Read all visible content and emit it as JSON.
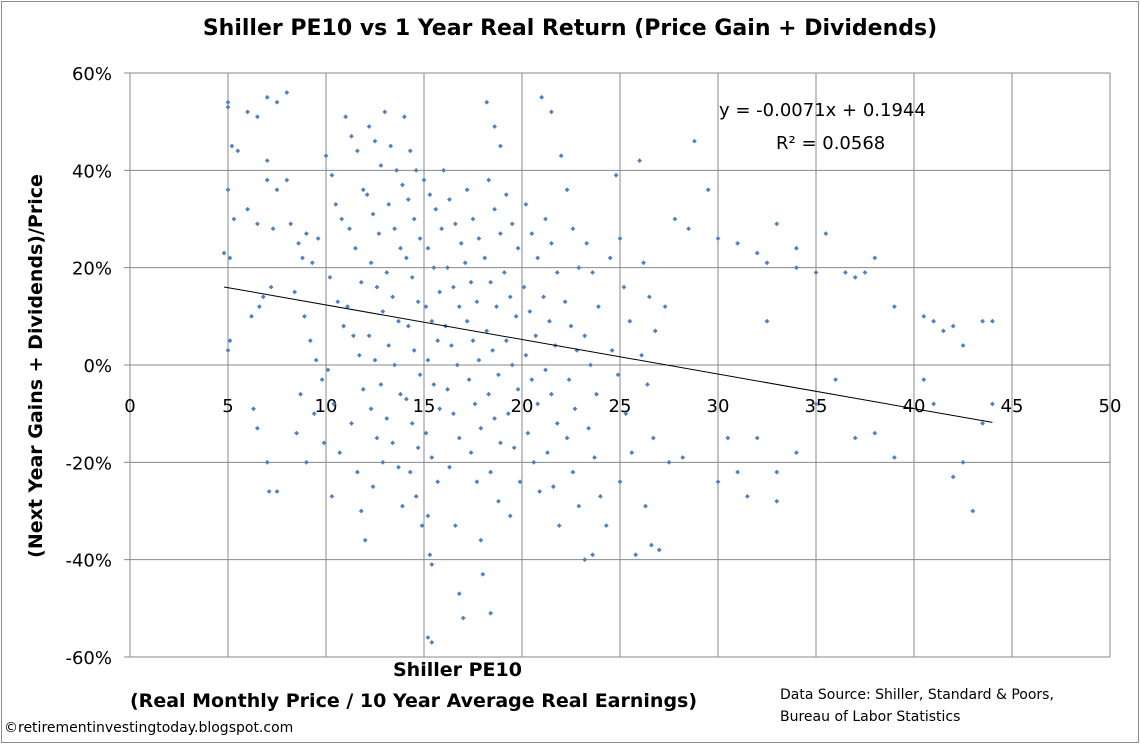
{
  "chart_data": {
    "type": "scatter",
    "title": "Shiller PE10 vs 1 Year Real Return (Price Gain +  Dividends)",
    "xlabel": "Shiller PE10",
    "xlabel_sub": "(Real Monthly Price / 10 Year Average Real Earnings)",
    "ylabel": "(Next Year Gains + Dividends)/Price",
    "xlim": [
      0,
      50
    ],
    "ylim": [
      -60,
      60
    ],
    "x_ticks": [
      "0",
      "5",
      "10",
      "15",
      "20",
      "25",
      "30",
      "35",
      "40",
      "45",
      "50"
    ],
    "y_ticks": [
      "60%",
      "40%",
      "20%",
      "0%",
      "-20%",
      "-40%",
      "-60%"
    ],
    "grid": true,
    "marker_color": "#4F81BD",
    "trendline": {
      "slope": -0.0071,
      "intercept": 0.1944,
      "x_range": [
        4.8,
        44
      ],
      "equation": "y = -0.0071x + 0.1944",
      "r_squared": "R² = 0.0568"
    },
    "points": [
      [
        5,
        54
      ],
      [
        5,
        53
      ],
      [
        5.2,
        45
      ],
      [
        5.5,
        44
      ],
      [
        5,
        36
      ],
      [
        5.3,
        30
      ],
      [
        4.8,
        23
      ],
      [
        5.1,
        22
      ],
      [
        5.1,
        5
      ],
      [
        5,
        3
      ],
      [
        6,
        52
      ],
      [
        6.5,
        51
      ],
      [
        7,
        55
      ],
      [
        7.5,
        54
      ],
      [
        8,
        56
      ],
      [
        7,
        42
      ],
      [
        7,
        38
      ],
      [
        8,
        38
      ],
      [
        7.5,
        36
      ],
      [
        6,
        32
      ],
      [
        6.5,
        29
      ],
      [
        7.3,
        28
      ],
      [
        6.8,
        14
      ],
      [
        7.2,
        16
      ],
      [
        6.2,
        10
      ],
      [
        6.6,
        12
      ],
      [
        7,
        -20
      ],
      [
        7.1,
        -26
      ],
      [
        7.5,
        -26
      ],
      [
        6.5,
        -13
      ],
      [
        6.3,
        -9
      ],
      [
        8.5,
        -14
      ],
      [
        9,
        -20
      ],
      [
        8.2,
        29
      ],
      [
        8.6,
        25
      ],
      [
        8.8,
        22
      ],
      [
        9,
        27
      ],
      [
        9.3,
        21
      ],
      [
        9.6,
        26
      ],
      [
        8.4,
        15
      ],
      [
        8.9,
        10
      ],
      [
        9.2,
        5
      ],
      [
        9.5,
        1
      ],
      [
        9.8,
        -3
      ],
      [
        8.7,
        -6
      ],
      [
        9.4,
        -10
      ],
      [
        9.9,
        -16
      ],
      [
        10,
        43
      ],
      [
        10.3,
        39
      ],
      [
        10.5,
        33
      ],
      [
        10.8,
        30
      ],
      [
        10.2,
        18
      ],
      [
        10.6,
        13
      ],
      [
        10.9,
        8
      ],
      [
        10.1,
        -1
      ],
      [
        10.4,
        -8
      ],
      [
        10.7,
        -18
      ],
      [
        10.3,
        -27
      ],
      [
        11,
        51
      ],
      [
        11.3,
        47
      ],
      [
        11.6,
        44
      ],
      [
        11.9,
        36
      ],
      [
        11.2,
        28
      ],
      [
        11.5,
        24
      ],
      [
        11.8,
        17
      ],
      [
        11.1,
        12
      ],
      [
        11.4,
        6
      ],
      [
        11.7,
        2
      ],
      [
        11.9,
        -5
      ],
      [
        11.3,
        -12
      ],
      [
        11.6,
        -22
      ],
      [
        11.8,
        -30
      ],
      [
        12,
        -36
      ],
      [
        12.2,
        49
      ],
      [
        12.5,
        46
      ],
      [
        12.8,
        41
      ],
      [
        12.1,
        35
      ],
      [
        12.4,
        31
      ],
      [
        12.7,
        27
      ],
      [
        12.3,
        21
      ],
      [
        12.6,
        16
      ],
      [
        12.9,
        11
      ],
      [
        12.2,
        6
      ],
      [
        12.5,
        1
      ],
      [
        12.8,
        -4
      ],
      [
        12.3,
        -9
      ],
      [
        12.6,
        -15
      ],
      [
        12.9,
        -20
      ],
      [
        12.4,
        -25
      ],
      [
        13,
        52
      ],
      [
        13.3,
        45
      ],
      [
        13.6,
        40
      ],
      [
        13.9,
        37
      ],
      [
        13.2,
        33
      ],
      [
        13.5,
        28
      ],
      [
        13.8,
        24
      ],
      [
        13.1,
        19
      ],
      [
        13.4,
        14
      ],
      [
        13.7,
        9
      ],
      [
        13.2,
        4
      ],
      [
        13.5,
        0
      ],
      [
        13.8,
        -6
      ],
      [
        13.1,
        -11
      ],
      [
        13.4,
        -16
      ],
      [
        13.7,
        -21
      ],
      [
        13.9,
        -29
      ],
      [
        14,
        51
      ],
      [
        14.3,
        44
      ],
      [
        14.6,
        40
      ],
      [
        14.2,
        34
      ],
      [
        14.5,
        30
      ],
      [
        14.8,
        26
      ],
      [
        14.1,
        22
      ],
      [
        14.4,
        18
      ],
      [
        14.7,
        13
      ],
      [
        14.2,
        8
      ],
      [
        14.5,
        3
      ],
      [
        14.8,
        -2
      ],
      [
        14.1,
        -7
      ],
      [
        14.4,
        -12
      ],
      [
        14.7,
        -17
      ],
      [
        14.3,
        -22
      ],
      [
        14.6,
        -27
      ],
      [
        14.9,
        -33
      ],
      [
        15,
        38
      ],
      [
        15.3,
        35
      ],
      [
        15.6,
        32
      ],
      [
        15.9,
        28
      ],
      [
        15.2,
        24
      ],
      [
        15.5,
        20
      ],
      [
        15.8,
        15
      ],
      [
        15.1,
        12
      ],
      [
        15.4,
        9
      ],
      [
        15.7,
        5
      ],
      [
        15.2,
        1
      ],
      [
        15.5,
        -4
      ],
      [
        15.8,
        -9
      ],
      [
        15.1,
        -14
      ],
      [
        15.4,
        -19
      ],
      [
        15.7,
        -24
      ],
      [
        15.2,
        -31
      ],
      [
        15.3,
        -39
      ],
      [
        15.4,
        -41
      ],
      [
        15.2,
        -56
      ],
      [
        15.4,
        -57
      ],
      [
        16,
        40
      ],
      [
        16.3,
        34
      ],
      [
        16.6,
        29
      ],
      [
        16.9,
        25
      ],
      [
        16.2,
        20
      ],
      [
        16.5,
        16
      ],
      [
        16.8,
        12
      ],
      [
        16.1,
        8
      ],
      [
        16.4,
        4
      ],
      [
        16.7,
        0
      ],
      [
        16.2,
        -5
      ],
      [
        16.5,
        -10
      ],
      [
        16.8,
        -15
      ],
      [
        16.3,
        -21
      ],
      [
        16.6,
        -33
      ],
      [
        16.8,
        -47
      ],
      [
        17,
        -52
      ],
      [
        17.2,
        36
      ],
      [
        17.5,
        30
      ],
      [
        17.8,
        26
      ],
      [
        17.1,
        21
      ],
      [
        17.4,
        17
      ],
      [
        17.7,
        13
      ],
      [
        17.2,
        9
      ],
      [
        17.5,
        5
      ],
      [
        17.8,
        1
      ],
      [
        17.3,
        -3
      ],
      [
        17.6,
        -8
      ],
      [
        17.9,
        -13
      ],
      [
        17.4,
        -18
      ],
      [
        17.7,
        -24
      ],
      [
        17.9,
        -36
      ],
      [
        18,
        -43
      ],
      [
        18.4,
        -51
      ],
      [
        18.2,
        54
      ],
      [
        18.6,
        49
      ],
      [
        18.9,
        45
      ],
      [
        18.3,
        38
      ],
      [
        18.6,
        32
      ],
      [
        18.9,
        27
      ],
      [
        18.1,
        22
      ],
      [
        18.4,
        17
      ],
      [
        18.7,
        12
      ],
      [
        18.2,
        7
      ],
      [
        18.5,
        3
      ],
      [
        18.8,
        -2
      ],
      [
        18.3,
        -6
      ],
      [
        18.6,
        -11
      ],
      [
        18.9,
        -16
      ],
      [
        18.4,
        -22
      ],
      [
        18.8,
        -28
      ],
      [
        19.2,
        35
      ],
      [
        19.5,
        29
      ],
      [
        19.8,
        24
      ],
      [
        19.1,
        19
      ],
      [
        19.4,
        14
      ],
      [
        19.7,
        10
      ],
      [
        19.2,
        5
      ],
      [
        19.5,
        0
      ],
      [
        19.8,
        -5
      ],
      [
        19.3,
        -10
      ],
      [
        19.6,
        -17
      ],
      [
        19.9,
        -24
      ],
      [
        19.4,
        -31
      ],
      [
        20.2,
        33
      ],
      [
        20.5,
        27
      ],
      [
        20.8,
        22
      ],
      [
        20.1,
        16
      ],
      [
        20.4,
        11
      ],
      [
        20.7,
        6
      ],
      [
        20.2,
        2
      ],
      [
        20.5,
        -3
      ],
      [
        20.8,
        -8
      ],
      [
        20.3,
        -14
      ],
      [
        20.6,
        -20
      ],
      [
        20.9,
        -26
      ],
      [
        21,
        55
      ],
      [
        21.5,
        52
      ],
      [
        21.2,
        30
      ],
      [
        21.5,
        25
      ],
      [
        21.8,
        19
      ],
      [
        21.1,
        14
      ],
      [
        21.4,
        9
      ],
      [
        21.7,
        4
      ],
      [
        21.2,
        -1
      ],
      [
        21.5,
        -6
      ],
      [
        21.8,
        -12
      ],
      [
        21.3,
        -18
      ],
      [
        21.6,
        -25
      ],
      [
        21.9,
        -33
      ],
      [
        22,
        43
      ],
      [
        22.3,
        36
      ],
      [
        22.6,
        28
      ],
      [
        22.9,
        20
      ],
      [
        22.2,
        13
      ],
      [
        22.5,
        8
      ],
      [
        22.8,
        3
      ],
      [
        22.4,
        -3
      ],
      [
        22.7,
        -9
      ],
      [
        22.3,
        -15
      ],
      [
        22.6,
        -22
      ],
      [
        22.9,
        -29
      ],
      [
        23.2,
        -40
      ],
      [
        23.6,
        -39
      ],
      [
        23.3,
        25
      ],
      [
        23.6,
        19
      ],
      [
        23.9,
        12
      ],
      [
        23.2,
        6
      ],
      [
        23.5,
        0
      ],
      [
        23.8,
        -6
      ],
      [
        23.4,
        -13
      ],
      [
        23.7,
        -19
      ],
      [
        24,
        -27
      ],
      [
        24.3,
        -33
      ],
      [
        24.5,
        22
      ],
      [
        24.8,
        39
      ],
      [
        25,
        26
      ],
      [
        25.2,
        16
      ],
      [
        25.5,
        9
      ],
      [
        24.6,
        3
      ],
      [
        24.9,
        -2
      ],
      [
        25.3,
        -10
      ],
      [
        25.6,
        -18
      ],
      [
        25,
        -24
      ],
      [
        25.8,
        -39
      ],
      [
        26,
        42
      ],
      [
        26.2,
        21
      ],
      [
        26.5,
        14
      ],
      [
        26.8,
        7
      ],
      [
        26.1,
        2
      ],
      [
        26.4,
        -4
      ],
      [
        26.7,
        -15
      ],
      [
        26.3,
        -29
      ],
      [
        26.6,
        -37
      ],
      [
        27,
        -38
      ],
      [
        27.3,
        12
      ],
      [
        27.5,
        -20
      ],
      [
        27.8,
        30
      ],
      [
        28.2,
        -19
      ],
      [
        28.5,
        28
      ],
      [
        28.8,
        46
      ],
      [
        29.5,
        36
      ],
      [
        30,
        26
      ],
      [
        31,
        25
      ],
      [
        32,
        23
      ],
      [
        32.5,
        21
      ],
      [
        33,
        29
      ],
      [
        34,
        24
      ],
      [
        34,
        20
      ],
      [
        35.5,
        27
      ],
      [
        35,
        19
      ],
      [
        36.5,
        19
      ],
      [
        37,
        18
      ],
      [
        37.5,
        19
      ],
      [
        38,
        22
      ],
      [
        39,
        12
      ],
      [
        40.5,
        10
      ],
      [
        41,
        9
      ],
      [
        41.5,
        7
      ],
      [
        42,
        8
      ],
      [
        42.5,
        4
      ],
      [
        43.5,
        9
      ],
      [
        44,
        9
      ],
      [
        30,
        -24
      ],
      [
        31,
        -22
      ],
      [
        32,
        -15
      ],
      [
        33,
        -22
      ],
      [
        34,
        -18
      ],
      [
        35,
        -8
      ],
      [
        36,
        -3
      ],
      [
        37,
        -15
      ],
      [
        38,
        -14
      ],
      [
        39,
        -19
      ],
      [
        41,
        -8
      ],
      [
        42,
        -23
      ],
      [
        42.5,
        -20
      ],
      [
        43,
        -30
      ],
      [
        43.5,
        -12
      ],
      [
        44,
        -8
      ],
      [
        40.5,
        -3
      ],
      [
        32.5,
        9
      ],
      [
        33,
        -28
      ],
      [
        31.5,
        -27
      ],
      [
        30.5,
        -15
      ]
    ]
  },
  "footer": {
    "source_line1": "Data Source: Shiller, Standard & Poors,",
    "source_line2": "Bureau of Labor Statistics",
    "copyright": "©retirementinvestingtoday.blogspot.com"
  }
}
